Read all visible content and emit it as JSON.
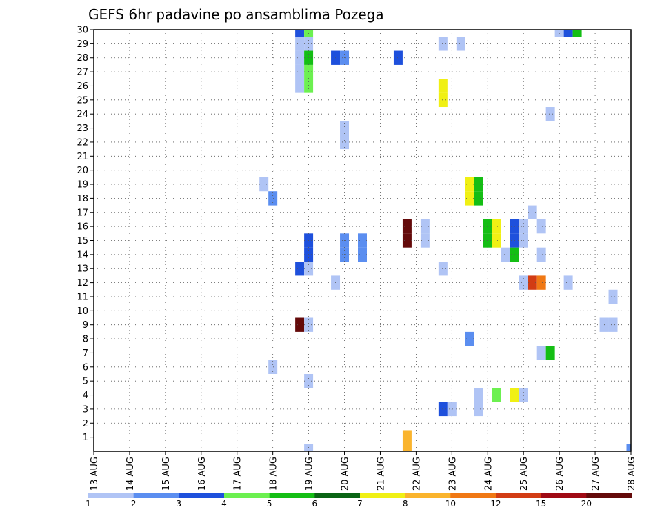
{
  "chart_data": {
    "type": "heatmap",
    "title": "GEFS 6hr padavine po ansamblima Pozega",
    "xlabel": "",
    "ylabel": "",
    "x_ticks": [
      "13 AUG",
      "14 AUG",
      "15 AUG",
      "16 AUG",
      "17 AUG",
      "18 AUG",
      "19 AUG",
      "20 AUG",
      "21 AUG",
      "22 AUG",
      "23 AUG",
      "24 AUG",
      "25 AUG",
      "26 AUG",
      "27 AUG",
      "28 AUG"
    ],
    "y_ticks": [
      1,
      2,
      3,
      4,
      5,
      6,
      7,
      8,
      9,
      10,
      11,
      12,
      13,
      14,
      15,
      16,
      17,
      18,
      19,
      20,
      21,
      22,
      23,
      24,
      25,
      26,
      27,
      28,
      29,
      30
    ],
    "x_range_days": [
      0,
      15
    ],
    "y_range": [
      0,
      30
    ],
    "step_hours": 6,
    "grid": true,
    "legend_position": "bottom",
    "colorbar": {
      "labels": [
        "1",
        "2",
        "3",
        "4",
        "5",
        "6",
        "7",
        "8",
        "10",
        "12",
        "15",
        "20"
      ],
      "colors": [
        "#b0c4f5",
        "#5b8ef0",
        "#1e50dc",
        "#6cf050",
        "#14be14",
        "#0a6414",
        "#f0f014",
        "#fab42d",
        "#f07814",
        "#d23c14",
        "#a00a14",
        "#640a0a"
      ]
    },
    "cells": [
      {
        "day": 4.75,
        "member": 19,
        "value": 1
      },
      {
        "day": 5.0,
        "member": 18,
        "value": 2
      },
      {
        "day": 5.0,
        "member": 6,
        "value": 1
      },
      {
        "day": 5.75,
        "member": 30,
        "value": 3
      },
      {
        "day": 6.0,
        "member": 30,
        "value": 4
      },
      {
        "day": 5.75,
        "member": 29,
        "value": 1
      },
      {
        "day": 6.0,
        "member": 29,
        "value": 1
      },
      {
        "day": 5.75,
        "member": 28,
        "value": 1
      },
      {
        "day": 6.0,
        "member": 28,
        "value": 5
      },
      {
        "day": 5.75,
        "member": 27,
        "value": 1
      },
      {
        "day": 6.0,
        "member": 27,
        "value": 4
      },
      {
        "day": 5.75,
        "member": 26,
        "value": 1
      },
      {
        "day": 6.0,
        "member": 26,
        "value": 4
      },
      {
        "day": 6.0,
        "member": 15,
        "value": 3
      },
      {
        "day": 6.0,
        "member": 14,
        "value": 3
      },
      {
        "day": 5.75,
        "member": 13,
        "value": 3
      },
      {
        "day": 6.0,
        "member": 13,
        "value": 1
      },
      {
        "day": 5.75,
        "member": 9,
        "value": 20
      },
      {
        "day": 6.0,
        "member": 9,
        "value": 1
      },
      {
        "day": 6.0,
        "member": 5,
        "value": 1
      },
      {
        "day": 6.0,
        "member": 0,
        "value": 1
      },
      {
        "day": 6.75,
        "member": 28,
        "value": 3
      },
      {
        "day": 7.0,
        "member": 28,
        "value": 2
      },
      {
        "day": 6.75,
        "member": 12,
        "value": 1
      },
      {
        "day": 7.0,
        "member": 23,
        "value": 1
      },
      {
        "day": 7.0,
        "member": 22,
        "value": 1
      },
      {
        "day": 7.0,
        "member": 15,
        "value": 2
      },
      {
        "day": 7.0,
        "member": 14,
        "value": 2
      },
      {
        "day": 7.5,
        "member": 15,
        "value": 2
      },
      {
        "day": 7.5,
        "member": 14,
        "value": 2
      },
      {
        "day": 8.5,
        "member": 28,
        "value": 3
      },
      {
        "day": 8.75,
        "member": 16,
        "value": 20
      },
      {
        "day": 8.75,
        "member": 15,
        "value": 20
      },
      {
        "day": 8.75,
        "member": 1,
        "value": 8
      },
      {
        "day": 8.75,
        "member": 0,
        "value": 8
      },
      {
        "day": 9.25,
        "member": 16,
        "value": 1
      },
      {
        "day": 9.25,
        "member": 15,
        "value": 1
      },
      {
        "day": 9.75,
        "member": 29,
        "value": 1
      },
      {
        "day": 10.25,
        "member": 29,
        "value": 1
      },
      {
        "day": 9.75,
        "member": 26,
        "value": 7
      },
      {
        "day": 9.75,
        "member": 25,
        "value": 7
      },
      {
        "day": 9.75,
        "member": 13,
        "value": 1
      },
      {
        "day": 9.75,
        "member": 3,
        "value": 3
      },
      {
        "day": 10.0,
        "member": 3,
        "value": 1
      },
      {
        "day": 10.5,
        "member": 19,
        "value": 7
      },
      {
        "day": 10.75,
        "member": 19,
        "value": 5
      },
      {
        "day": 10.5,
        "member": 18,
        "value": 7
      },
      {
        "day": 10.75,
        "member": 18,
        "value": 5
      },
      {
        "day": 10.5,
        "member": 8,
        "value": 2
      },
      {
        "day": 10.75,
        "member": 4,
        "value": 1
      },
      {
        "day": 10.75,
        "member": 3,
        "value": 1
      },
      {
        "day": 11.0,
        "member": 16,
        "value": 5
      },
      {
        "day": 11.25,
        "member": 16,
        "value": 7
      },
      {
        "day": 11.0,
        "member": 15,
        "value": 5
      },
      {
        "day": 11.25,
        "member": 15,
        "value": 7
      },
      {
        "day": 11.25,
        "member": 4,
        "value": 4
      },
      {
        "day": 11.5,
        "member": 14,
        "value": 1
      },
      {
        "day": 11.75,
        "member": 16,
        "value": 3
      },
      {
        "day": 12.0,
        "member": 16,
        "value": 1
      },
      {
        "day": 11.75,
        "member": 15,
        "value": 3
      },
      {
        "day": 12.0,
        "member": 15,
        "value": 1
      },
      {
        "day": 11.75,
        "member": 14,
        "value": 5
      },
      {
        "day": 11.75,
        "member": 4,
        "value": 7
      },
      {
        "day": 12.0,
        "member": 4,
        "value": 1
      },
      {
        "day": 12.0,
        "member": 12,
        "value": 1
      },
      {
        "day": 12.25,
        "member": 12,
        "value": 12
      },
      {
        "day": 12.5,
        "member": 12,
        "value": 10
      },
      {
        "day": 12.25,
        "member": 17,
        "value": 1
      },
      {
        "day": 12.5,
        "member": 16,
        "value": 1
      },
      {
        "day": 12.5,
        "member": 14,
        "value": 1
      },
      {
        "day": 12.5,
        "member": 7,
        "value": 1
      },
      {
        "day": 12.75,
        "member": 7,
        "value": 5
      },
      {
        "day": 12.75,
        "member": 24,
        "value": 1
      },
      {
        "day": 13.0,
        "member": 30,
        "value": 1
      },
      {
        "day": 13.25,
        "member": 30,
        "value": 3
      },
      {
        "day": 13.5,
        "member": 30,
        "value": 5
      },
      {
        "day": 13.25,
        "member": 12,
        "value": 1
      },
      {
        "day": 14.5,
        "member": 11,
        "value": 1
      },
      {
        "day": 14.25,
        "member": 9,
        "value": 1
      },
      {
        "day": 14.5,
        "member": 9,
        "value": 1
      },
      {
        "day": 15.0,
        "member": 0,
        "value": 2
      }
    ]
  }
}
